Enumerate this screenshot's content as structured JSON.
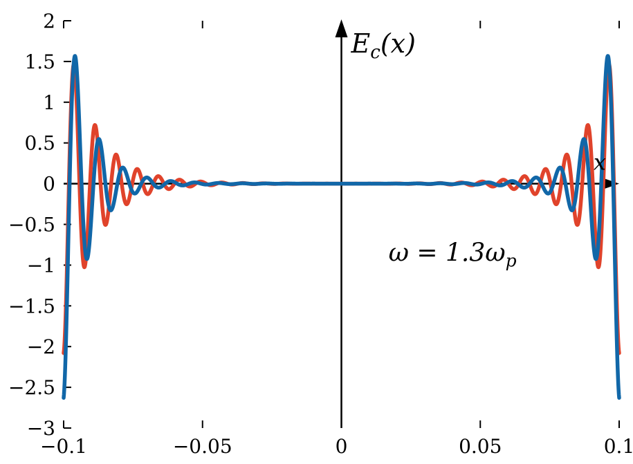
{
  "figure": {
    "background": "#ffffff"
  },
  "chart_data": {
    "type": "line",
    "title": "",
    "xlabel": "x",
    "ylabel": "E_c(x)",
    "xlim": [
      -0.1,
      0.1
    ],
    "ylim": [
      -3,
      2
    ],
    "grid": false,
    "legend": "none",
    "axes_through_origin": true,
    "x_ticks": [
      -0.1,
      -0.05,
      0,
      0.05,
      0.1
    ],
    "x_tick_labels": [
      "−0.1",
      "−0.05",
      "0",
      "0.05",
      "0.1"
    ],
    "y_ticks": [
      2,
      1.5,
      1,
      0.5,
      0,
      -0.5,
      -1,
      -1.5,
      -2,
      -2.5,
      -3
    ],
    "y_tick_labels": [
      "2",
      "1.5",
      "1",
      "0.5",
      "0",
      "−0.5",
      "−1",
      "−1.5",
      "−2",
      "−2.5",
      "−3"
    ],
    "ylabel_parts": {
      "base": "E",
      "sub": "c",
      "rest": "(x)"
    },
    "xlabel_text": "x",
    "annotation": {
      "text": "ω = 1.3ω_p",
      "base": "ω = 1.3ω",
      "sub": "p",
      "x": 0.04,
      "y": -0.95
    },
    "series": [
      {
        "name": "red-curve",
        "color": "#e0432b",
        "line_width": 5.5,
        "model": {
          "formula": "E(x) = -(C*exp(-(0.1-|x|)/L) + T*(|x|/0.1)^2) * cos(2*pi*(0.1-|x|)/lambda)",
          "C": 2.05,
          "L": 0.0105,
          "lambda": 0.0076,
          "T": 0.03
        },
        "observed_features": {
          "edge_minimum": -2.05,
          "largest_positive_peak": 1.3,
          "peak_location_abs_x": 0.097,
          "symmetric_about_x0": true,
          "amplitude_decays_toward_center": true
        }
      },
      {
        "name": "blue-curve",
        "color": "#1167a8",
        "line_width": 5.5,
        "model": {
          "formula": "E(x) = -(C*exp(-(0.1-|x|)/L) + T*(|x|/0.1)^2) * cos(2*pi*(0.1-|x|)/lambda)",
          "C": 2.6,
          "L": 0.008,
          "lambda": 0.0086,
          "T": 0.03
        },
        "observed_features": {
          "edge_minimum": -2.6,
          "largest_positive_peak": 1.57,
          "peak_location_abs_x": 0.094,
          "symmetric_about_x0": true,
          "amplitude_decays_toward_center": true
        }
      }
    ]
  }
}
